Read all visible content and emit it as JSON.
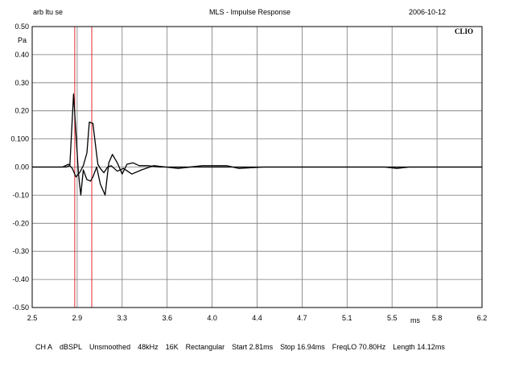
{
  "header": {
    "left": "arb ltu se",
    "center": "MLS - Impulse Response",
    "right": "2006-10-12"
  },
  "brand": "CLIO",
  "footer": {
    "items": [
      "CH A",
      "dBSPL",
      "Unsmoothed",
      "48kHz",
      "16K",
      "Rectangular",
      "Start 2.81ms",
      "Stop 16.94ms",
      "FreqLO 70.80Hz",
      "Length 14.12ms"
    ]
  },
  "colors": {
    "grid": "#7a7a7a",
    "trace": "#000000",
    "marker": "#e8262b",
    "background": "#ffffff"
  },
  "chart_data": {
    "type": "line",
    "title": "MLS - Impulse Response",
    "xlabel": "ms",
    "ylabel": "Pa",
    "xlim": [
      2.5,
      6.2
    ],
    "ylim": [
      -0.5,
      0.5
    ],
    "grid": true,
    "x_ticks": [
      "2.5",
      "2.9",
      "3.3",
      "3.6",
      "4.0",
      "4.4",
      "4.7",
      "5.1",
      "5.5",
      "5.8",
      "6.2"
    ],
    "y_ticks": [
      "0.50",
      "0.40",
      "0.30",
      "0.20",
      "0.100",
      "0.00",
      "-0.10",
      "-0.20",
      "-0.30",
      "-0.40",
      "-0.50"
    ],
    "markers_x": [
      2.85,
      2.99
    ],
    "series": [
      {
        "x": [
          2.5,
          2.6,
          2.7,
          2.78,
          2.81,
          2.84,
          2.86,
          2.88,
          2.9,
          2.92,
          2.95,
          2.98,
          3.0,
          3.03,
          3.06,
          3.1,
          3.13,
          3.16,
          3.2,
          3.24,
          3.28,
          3.33,
          3.38,
          3.45,
          3.55,
          3.7,
          3.85,
          4.0,
          4.2,
          4.4,
          4.6,
          4.8,
          5.0,
          5.2,
          5.4,
          5.6,
          5.8,
          6.0,
          6.2
        ],
        "y": [
          0.0,
          0.0,
          0.0,
          0.0,
          0.005,
          0.26,
          0.12,
          -0.02,
          -0.1,
          -0.01,
          -0.045,
          -0.05,
          -0.035,
          0.0,
          -0.06,
          -0.1,
          0.015,
          0.045,
          0.015,
          -0.025,
          0.01,
          0.015,
          0.005,
          0.005,
          0.0,
          0.0,
          0.0,
          0.0,
          0.0,
          0.0,
          0.0,
          0.0,
          0.0,
          0.0,
          0.0,
          0.0,
          0.0,
          0.0,
          0.0
        ]
      },
      {
        "x": [
          2.5,
          2.75,
          2.8,
          2.83,
          2.86,
          2.89,
          2.92,
          2.95,
          2.97,
          3.0,
          3.02,
          3.04,
          3.06,
          3.09,
          3.12,
          3.15,
          3.2,
          3.25,
          3.32,
          3.4,
          3.5,
          3.6,
          3.7,
          3.9,
          4.1,
          4.2,
          4.4,
          4.6,
          4.8,
          5.0,
          5.2,
          5.4,
          5.5,
          5.6,
          5.8,
          6.0,
          6.2
        ],
        "y": [
          0.0,
          0.0,
          0.01,
          -0.005,
          -0.035,
          -0.02,
          0.005,
          0.05,
          0.16,
          0.155,
          0.08,
          0.01,
          -0.005,
          -0.02,
          0.0,
          0.005,
          -0.015,
          -0.005,
          -0.025,
          -0.01,
          0.005,
          0.0,
          -0.005,
          0.005,
          0.005,
          -0.005,
          0.0,
          0.0,
          0.0,
          0.0,
          0.0,
          0.0,
          -0.005,
          0.0,
          0.0,
          0.0,
          0.0
        ]
      }
    ]
  }
}
